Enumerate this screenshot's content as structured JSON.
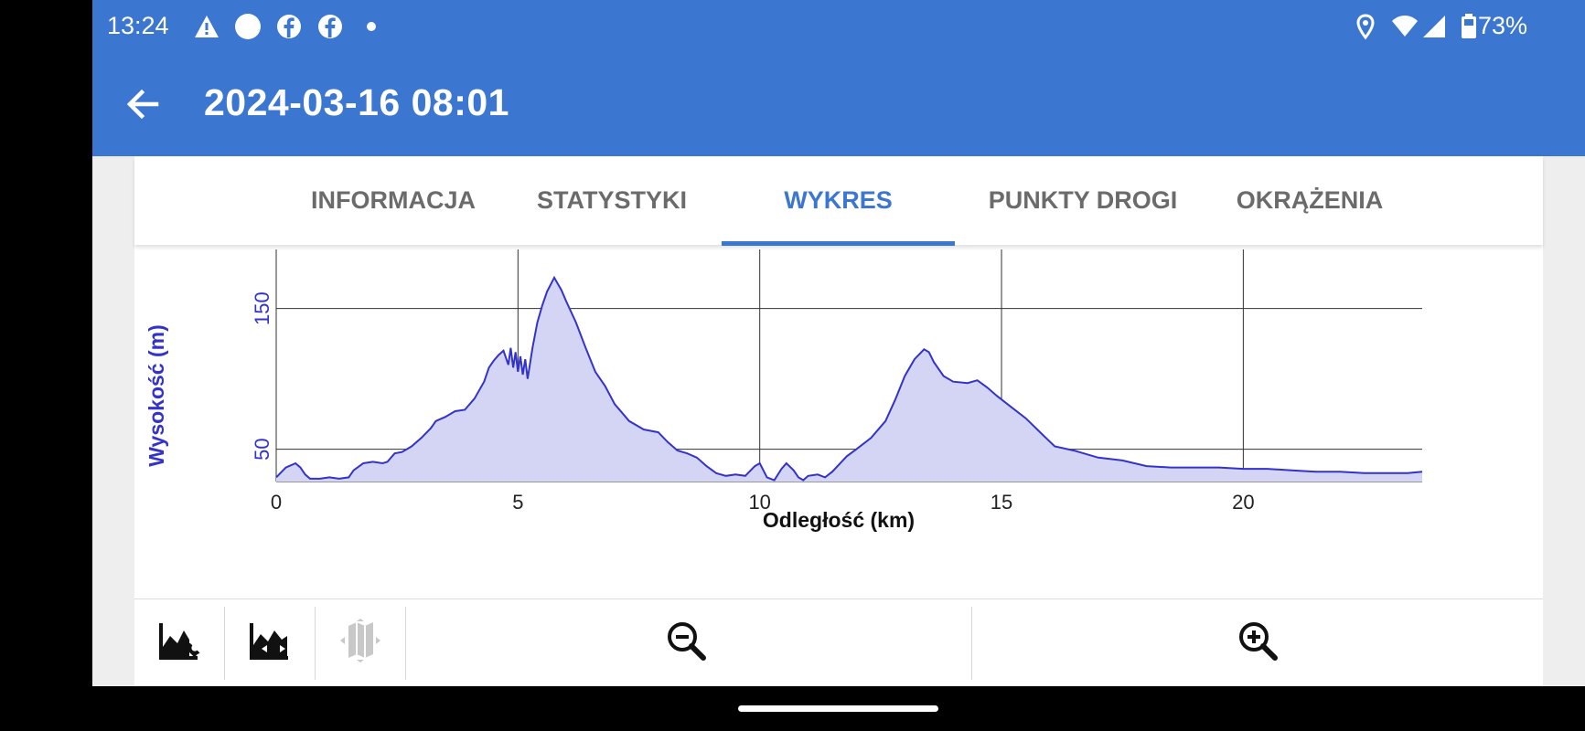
{
  "status_bar": {
    "time": "13:24",
    "battery": "73%",
    "icons": [
      "warning-icon",
      "circle-icon",
      "facebook-icon",
      "facebook-icon",
      "dot-icon",
      "location-icon",
      "wifi-icon",
      "signal-icon",
      "battery-icon"
    ]
  },
  "app_bar": {
    "title": "2024-03-16 08:01",
    "back_icon": "arrow-left-icon"
  },
  "tabs": [
    {
      "label": "INFORMACJA",
      "active": false
    },
    {
      "label": "STATYSTYKI",
      "active": false
    },
    {
      "label": "WYKRES",
      "active": true
    },
    {
      "label": "PUNKTY DROGI",
      "active": false
    },
    {
      "label": "OKRĄŻENIA",
      "active": false
    }
  ],
  "colors": {
    "accent": "#3b76d0",
    "line": "#3333cc",
    "fill": "#d4d4f5"
  },
  "chart_data": {
    "type": "area",
    "xlabel": "Odległość (km)",
    "ylabel": "Wysokość (m)",
    "xticks": [
      0,
      5,
      10,
      15,
      20
    ],
    "yticks": [
      50,
      150
    ],
    "xlim": [
      0,
      23.7
    ],
    "ylim": [
      27,
      192
    ],
    "grid": true,
    "series": [
      {
        "points": [
          [
            0,
            30
          ],
          [
            0.2,
            37
          ],
          [
            0.4,
            40
          ],
          [
            0.5,
            37
          ],
          [
            0.6,
            32
          ],
          [
            0.7,
            29
          ],
          [
            0.9,
            29
          ],
          [
            1.1,
            30
          ],
          [
            1.3,
            29
          ],
          [
            1.5,
            30
          ],
          [
            1.6,
            35
          ],
          [
            1.8,
            40
          ],
          [
            2.0,
            41
          ],
          [
            2.2,
            40
          ],
          [
            2.3,
            41
          ],
          [
            2.45,
            47
          ],
          [
            2.6,
            48
          ],
          [
            2.8,
            52
          ],
          [
            3.0,
            58
          ],
          [
            3.2,
            65
          ],
          [
            3.3,
            70
          ],
          [
            3.5,
            73
          ],
          [
            3.7,
            77
          ],
          [
            3.9,
            78
          ],
          [
            4.1,
            86
          ],
          [
            4.3,
            98
          ],
          [
            4.4,
            108
          ],
          [
            4.5,
            113
          ],
          [
            4.6,
            117
          ],
          [
            4.7,
            120
          ],
          [
            4.8,
            110
          ],
          [
            4.85,
            122
          ],
          [
            4.9,
            108
          ],
          [
            4.95,
            119
          ],
          [
            5.0,
            105
          ],
          [
            5.05,
            116
          ],
          [
            5.1,
            103
          ],
          [
            5.15,
            114
          ],
          [
            5.2,
            100
          ],
          [
            5.3,
            122
          ],
          [
            5.4,
            140
          ],
          [
            5.5,
            152
          ],
          [
            5.6,
            162
          ],
          [
            5.75,
            172
          ],
          [
            5.9,
            163
          ],
          [
            6.0,
            155
          ],
          [
            6.2,
            140
          ],
          [
            6.4,
            122
          ],
          [
            6.6,
            105
          ],
          [
            6.8,
            95
          ],
          [
            7.0,
            82
          ],
          [
            7.3,
            70
          ],
          [
            7.6,
            64
          ],
          [
            7.9,
            62
          ],
          [
            8.1,
            55
          ],
          [
            8.3,
            49
          ],
          [
            8.5,
            47
          ],
          [
            8.7,
            44
          ],
          [
            8.9,
            38
          ],
          [
            9.1,
            33
          ],
          [
            9.3,
            31
          ],
          [
            9.5,
            32
          ],
          [
            9.7,
            31
          ],
          [
            9.9,
            38
          ],
          [
            10.0,
            40
          ],
          [
            10.15,
            30
          ],
          [
            10.3,
            28
          ],
          [
            10.45,
            36
          ],
          [
            10.55,
            40
          ],
          [
            10.7,
            35
          ],
          [
            10.8,
            30
          ],
          [
            10.9,
            28
          ],
          [
            11.0,
            31
          ],
          [
            11.2,
            32
          ],
          [
            11.35,
            30
          ],
          [
            11.5,
            34
          ],
          [
            11.8,
            45
          ],
          [
            12.0,
            50
          ],
          [
            12.3,
            58
          ],
          [
            12.6,
            70
          ],
          [
            12.8,
            85
          ],
          [
            13.0,
            102
          ],
          [
            13.2,
            114
          ],
          [
            13.4,
            121
          ],
          [
            13.5,
            119
          ],
          [
            13.6,
            112
          ],
          [
            13.8,
            102
          ],
          [
            14.0,
            98
          ],
          [
            14.3,
            97
          ],
          [
            14.5,
            99
          ],
          [
            14.7,
            94
          ],
          [
            14.9,
            88
          ],
          [
            15.2,
            80
          ],
          [
            15.5,
            72
          ],
          [
            15.8,
            62
          ],
          [
            16.1,
            52
          ],
          [
            16.5,
            49
          ],
          [
            17.0,
            44
          ],
          [
            17.5,
            42
          ],
          [
            18.0,
            38
          ],
          [
            18.5,
            37
          ],
          [
            19.0,
            37
          ],
          [
            19.5,
            37
          ],
          [
            20.0,
            36
          ],
          [
            20.5,
            36
          ],
          [
            21.0,
            35
          ],
          [
            21.5,
            34
          ],
          [
            22.0,
            34
          ],
          [
            22.5,
            33
          ],
          [
            23.0,
            33
          ],
          [
            23.4,
            33
          ],
          [
            23.7,
            34
          ]
        ]
      }
    ]
  },
  "toolbar": {
    "icons": [
      "chart-settings-icon",
      "chart-range-icon",
      "map-icon",
      "zoom-out-icon",
      "zoom-in-icon"
    ]
  }
}
